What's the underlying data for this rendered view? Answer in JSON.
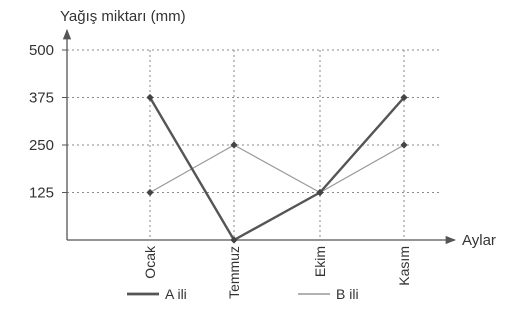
{
  "chart_data": {
    "type": "line",
    "ylabel": "Yağış miktarı (mm)",
    "xlabel": "Aylar",
    "categories": [
      "Ocak",
      "Temmuz",
      "Ekim",
      "Kasım"
    ],
    "yticks": [
      125,
      250,
      375,
      500
    ],
    "ylim": [
      0,
      500
    ],
    "grid": true,
    "legend_position": "bottom",
    "series": [
      {
        "name": "A ili",
        "values": [
          375,
          0,
          125,
          375
        ],
        "color": "#555555"
      },
      {
        "name": "B ili",
        "values": [
          125,
          250,
          125,
          250
        ],
        "color": "#999999"
      }
    ]
  }
}
